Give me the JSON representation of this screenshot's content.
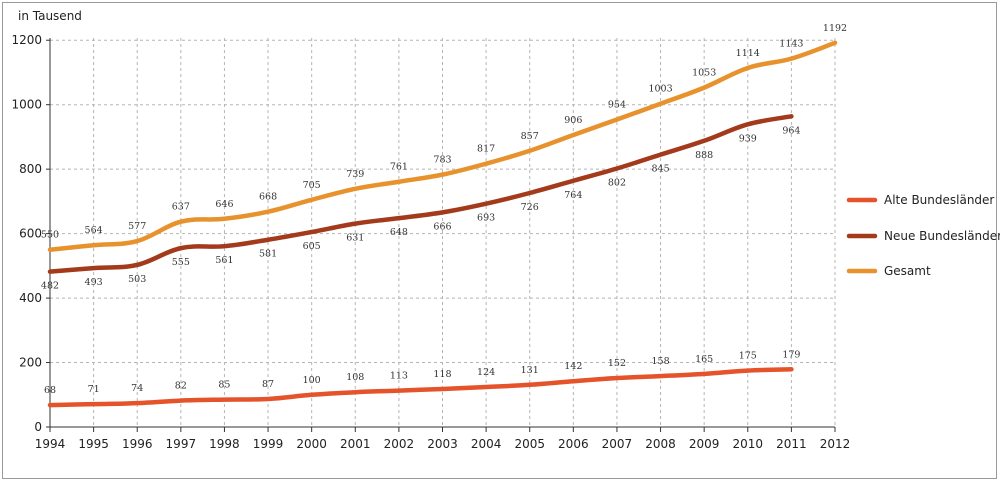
{
  "chart_data": {
    "type": "line",
    "ylabel": "in Tausend",
    "ylim": [
      0,
      1300
    ],
    "yticks": [
      0,
      200,
      400,
      600,
      800,
      1000,
      1200
    ],
    "x": [
      "1994",
      "1995",
      "1996",
      "1997",
      "1998",
      "1999",
      "2000",
      "2001",
      "2002",
      "2003",
      "2004",
      "2005",
      "2006",
      "2007",
      "2008",
      "2009",
      "2010",
      "2011",
      "2012"
    ],
    "grid": true,
    "legend_position": "right",
    "series": [
      {
        "name": "Alte Bundesländer",
        "color": "#e4532a",
        "values": [
          68,
          71,
          74,
          82,
          85,
          87,
          100,
          108,
          113,
          118,
          124,
          131,
          142,
          152,
          158,
          165,
          175,
          179,
          null
        ]
      },
      {
        "name": "Neue Bundesländer",
        "color": "#a33a1b",
        "values": [
          482,
          493,
          503,
          555,
          561,
          581,
          605,
          631,
          648,
          666,
          693,
          726,
          764,
          802,
          845,
          888,
          939,
          964,
          null
        ]
      },
      {
        "name": "Gesamt",
        "color": "#e8922d",
        "values": [
          550,
          564,
          577,
          637,
          646,
          668,
          705,
          739,
          761,
          783,
          817,
          857,
          906,
          954,
          1003,
          1053,
          1114,
          1143,
          1192
        ]
      }
    ]
  }
}
